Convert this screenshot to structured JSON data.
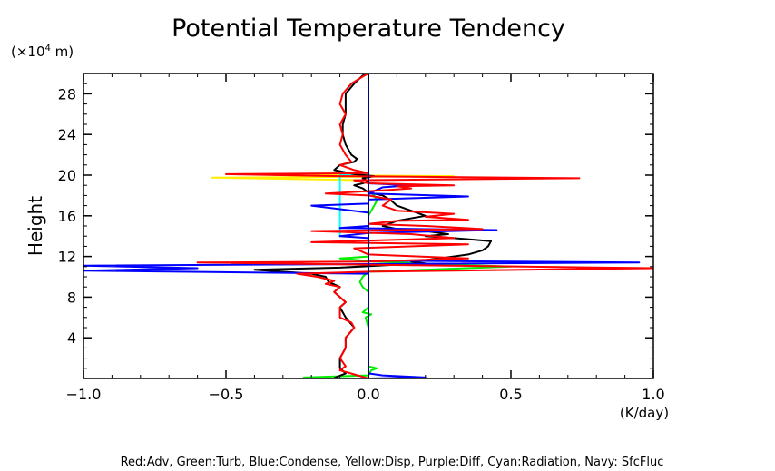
{
  "chart_data": {
    "type": "line",
    "title": "Potential Temperature Tendency",
    "ylabel": "Height",
    "yunit_prefix": "(×10",
    "yunit_exp": "4",
    "yunit_suffix": " m)",
    "xunit": "(K/day)",
    "xlim": [
      -1.0,
      1.0
    ],
    "ylim": [
      0,
      30
    ],
    "xticks": [
      -1.0,
      -0.5,
      0.0,
      0.5,
      1.0
    ],
    "xtick_labels": [
      "−1.0",
      "−0.5",
      "0.0",
      "0.5",
      "1.0"
    ],
    "yticks": [
      4,
      8,
      12,
      16,
      20,
      24,
      28
    ],
    "ytick_labels": [
      "4",
      "8",
      "12",
      "16",
      "20",
      "24",
      "28"
    ],
    "legend_text": "Red:Adv, Green:Turb, Blue:Condense, Yellow:Disp, Purple:Diff, Cyan:Radiation, Navy: SfcFluc",
    "series": [
      {
        "color": "#00ee00",
        "points": [
          [
            -0.23,
            0.1
          ],
          [
            0.0,
            0.3
          ],
          [
            0.01,
            0.8
          ],
          [
            0.03,
            1.0
          ],
          [
            0.0,
            1.2
          ],
          [
            0.0,
            5.0
          ],
          [
            -0.01,
            6.0
          ],
          [
            0.01,
            6.3
          ],
          [
            -0.02,
            6.5
          ],
          [
            0.0,
            7.0
          ],
          [
            0.0,
            8.5
          ],
          [
            -0.02,
            9.0
          ],
          [
            -0.03,
            9.5
          ],
          [
            -0.02,
            10.0
          ],
          [
            0.0,
            10.5
          ],
          [
            0.5,
            11.0
          ],
          [
            0.3,
            11.2
          ],
          [
            0.02,
            11.5
          ],
          [
            -0.1,
            11.8
          ],
          [
            0.0,
            12.0
          ],
          [
            0.0,
            16.0
          ],
          [
            0.02,
            17.0
          ],
          [
            0.03,
            17.5
          ],
          [
            0.02,
            18.0
          ],
          [
            0.0,
            18.5
          ],
          [
            0.0,
            30.0
          ]
        ]
      },
      {
        "color": "#ffee00",
        "points": [
          [
            0.0,
            19.5
          ],
          [
            -0.55,
            19.75
          ],
          [
            0.3,
            19.9
          ],
          [
            -0.2,
            20.0
          ],
          [
            0.0,
            20.1
          ],
          [
            0.0,
            30.0
          ]
        ]
      },
      {
        "color": "#00ffff",
        "points": [
          [
            -0.1,
            14.0
          ],
          [
            -0.1,
            20.0
          ],
          [
            0.0,
            20.2
          ]
        ]
      },
      {
        "color": "#000000",
        "points": [
          [
            -0.12,
            0.05
          ],
          [
            -0.08,
            0.5
          ],
          [
            -0.1,
            1.0
          ],
          [
            -0.1,
            2.0
          ],
          [
            -0.08,
            3.0
          ],
          [
            -0.08,
            4.0
          ],
          [
            -0.05,
            5.0
          ],
          [
            -0.08,
            6.0
          ],
          [
            -0.1,
            7.0
          ],
          [
            -0.08,
            7.5
          ],
          [
            -0.1,
            8.0
          ],
          [
            -0.12,
            8.5
          ],
          [
            -0.1,
            9.0
          ],
          [
            -0.14,
            9.5
          ],
          [
            -0.15,
            10.0
          ],
          [
            -0.2,
            10.3
          ],
          [
            -0.3,
            10.5
          ],
          [
            -0.4,
            10.7
          ],
          [
            -0.1,
            10.9
          ],
          [
            0.1,
            11.2
          ],
          [
            0.2,
            11.3
          ],
          [
            0.15,
            11.5
          ],
          [
            0.25,
            11.8
          ],
          [
            0.35,
            12.2
          ],
          [
            0.4,
            12.6
          ],
          [
            0.42,
            13.0
          ],
          [
            0.43,
            13.5
          ],
          [
            0.3,
            13.8
          ],
          [
            0.2,
            14.0
          ],
          [
            0.28,
            14.2
          ],
          [
            0.2,
            14.5
          ],
          [
            0.1,
            14.7
          ],
          [
            0.05,
            15.0
          ],
          [
            0.1,
            15.5
          ],
          [
            0.2,
            16.0
          ],
          [
            0.15,
            16.5
          ],
          [
            0.1,
            17.0
          ],
          [
            0.08,
            17.5
          ],
          [
            0.05,
            18.0
          ],
          [
            0.0,
            18.3
          ],
          [
            -0.02,
            18.7
          ],
          [
            -0.05,
            19.0
          ],
          [
            -0.02,
            19.2
          ],
          [
            0.0,
            19.4
          ],
          [
            -0.02,
            19.7
          ],
          [
            0.02,
            19.9
          ],
          [
            -0.05,
            20.1
          ],
          [
            -0.12,
            20.5
          ],
          [
            -0.1,
            21.0
          ],
          [
            -0.05,
            21.3
          ],
          [
            -0.04,
            21.6
          ],
          [
            -0.06,
            22.0
          ],
          [
            -0.08,
            23.0
          ],
          [
            -0.09,
            24.0
          ],
          [
            -0.09,
            25.0
          ],
          [
            -0.08,
            26.0
          ],
          [
            -0.08,
            27.0
          ],
          [
            -0.08,
            28.0
          ],
          [
            -0.05,
            29.0
          ],
          [
            -0.02,
            29.8
          ],
          [
            0.0,
            30.0
          ]
        ]
      },
      {
        "color": "#0000ff",
        "points": [
          [
            0.0,
            0.0
          ],
          [
            0.2,
            0.1
          ],
          [
            0.05,
            0.3
          ],
          [
            0.0,
            0.5
          ],
          [
            0.0,
            10.3
          ],
          [
            -1.0,
            10.6
          ],
          [
            -0.6,
            10.85
          ],
          [
            -1.0,
            11.1
          ],
          [
            0.95,
            11.4
          ],
          [
            0.0,
            11.6
          ],
          [
            0.0,
            13.8
          ],
          [
            -0.1,
            14.0
          ],
          [
            0.0,
            14.3
          ],
          [
            0.45,
            14.6
          ],
          [
            -0.1,
            14.8
          ],
          [
            0.0,
            15.0
          ],
          [
            0.0,
            16.3
          ],
          [
            -0.2,
            17.0
          ],
          [
            0.0,
            17.2
          ],
          [
            0.0,
            17.6
          ],
          [
            0.35,
            17.9
          ],
          [
            0.0,
            18.2
          ],
          [
            0.05,
            18.8
          ],
          [
            0.15,
            19.0
          ],
          [
            0.0,
            19.2
          ],
          [
            0.0,
            30.0
          ]
        ]
      },
      {
        "color": "#ff0000",
        "points": [
          [
            0.0,
            0.0
          ],
          [
            -0.05,
            0.4
          ],
          [
            -0.1,
            0.8
          ],
          [
            -0.08,
            1.2
          ],
          [
            -0.1,
            2.0
          ],
          [
            -0.08,
            3.0
          ],
          [
            -0.08,
            4.0
          ],
          [
            -0.05,
            5.0
          ],
          [
            -0.06,
            5.5
          ],
          [
            -0.1,
            6.0
          ],
          [
            -0.1,
            7.0
          ],
          [
            -0.08,
            7.5
          ],
          [
            -0.1,
            8.0
          ],
          [
            -0.12,
            8.5
          ],
          [
            -0.1,
            9.0
          ],
          [
            -0.15,
            9.3
          ],
          [
            -0.12,
            9.6
          ],
          [
            -0.18,
            10.0
          ],
          [
            -0.25,
            10.3
          ],
          [
            0.0,
            10.5
          ],
          [
            1.0,
            10.85
          ],
          [
            -0.6,
            11.4
          ],
          [
            0.0,
            11.5
          ],
          [
            0.35,
            11.8
          ],
          [
            0.0,
            12.2
          ],
          [
            -0.05,
            12.8
          ],
          [
            0.35,
            13.2
          ],
          [
            -0.2,
            13.4
          ],
          [
            0.3,
            13.8
          ],
          [
            0.15,
            14.2
          ],
          [
            -0.2,
            14.5
          ],
          [
            0.4,
            14.7
          ],
          [
            0.2,
            15.0
          ],
          [
            0.0,
            15.2
          ],
          [
            0.1,
            15.5
          ],
          [
            0.35,
            15.6
          ],
          [
            0.2,
            15.9
          ],
          [
            0.3,
            16.2
          ],
          [
            0.1,
            16.5
          ],
          [
            0.05,
            17.0
          ],
          [
            0.08,
            17.6
          ],
          [
            0.0,
            18.0
          ],
          [
            -0.15,
            18.2
          ],
          [
            0.05,
            18.5
          ],
          [
            0.15,
            18.7
          ],
          [
            0.1,
            18.9
          ],
          [
            0.3,
            19.0
          ],
          [
            0.0,
            19.2
          ],
          [
            -0.05,
            19.5
          ],
          [
            0.74,
            19.7
          ],
          [
            -0.1,
            19.9
          ],
          [
            -0.5,
            20.1
          ],
          [
            0.0,
            20.2
          ],
          [
            -0.05,
            20.5
          ],
          [
            -0.1,
            21.0
          ],
          [
            -0.06,
            21.3
          ],
          [
            -0.08,
            22.0
          ],
          [
            -0.1,
            23.0
          ],
          [
            -0.09,
            24.0
          ],
          [
            -0.1,
            25.0
          ],
          [
            -0.08,
            26.0
          ],
          [
            -0.1,
            27.0
          ],
          [
            -0.09,
            28.0
          ],
          [
            -0.06,
            29.0
          ],
          [
            -0.02,
            29.7
          ],
          [
            0.0,
            30.0
          ]
        ]
      },
      {
        "color": "#000080",
        "points": [
          [
            0.0,
            0.0
          ],
          [
            0.0,
            30.0
          ]
        ]
      }
    ]
  }
}
